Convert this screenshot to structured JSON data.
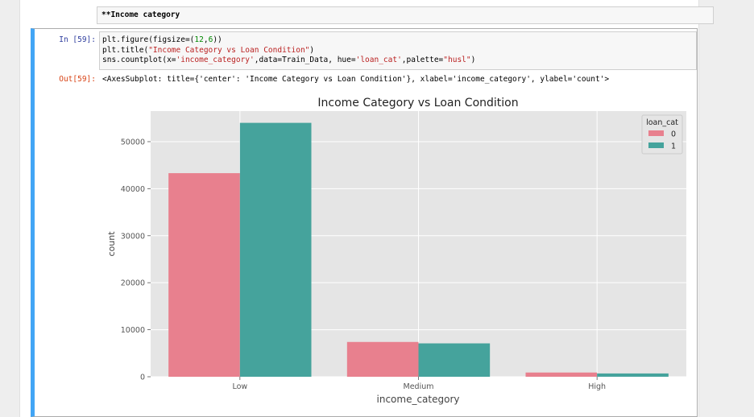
{
  "markdown_cell": {
    "text": "**Income category"
  },
  "code_cell": {
    "in_prompt": "In [59]:",
    "lines": [
      [
        "plt.figure(figsize=(",
        "12",
        ",",
        "6",
        "))"
      ],
      [
        "plt.title(",
        "\"Income Category vs Loan Condition\"",
        ")"
      ],
      [
        "sns.countplot(x=",
        "'income_category'",
        ",data=Train_Data, hue=",
        "'loan_cat'",
        ",palette=",
        "\"husl\"",
        ")"
      ]
    ],
    "out_prompt": "Out[59]:",
    "output_text": "<AxesSubplot: title={'center': 'Income Category vs Loan Condition'}, xlabel='income_category', ylabel='count'>"
  },
  "chart_data": {
    "type": "bar",
    "title": "Income Category vs Loan Condition",
    "xlabel": "income_category",
    "ylabel": "count",
    "categories": [
      "Low",
      "Medium",
      "High"
    ],
    "series": [
      {
        "name": "0",
        "values": [
          43300,
          7400,
          900
        ],
        "color": "#e8808e"
      },
      {
        "name": "1",
        "values": [
          54000,
          7100,
          700
        ],
        "color": "#45a39c"
      }
    ],
    "ylim": [
      0,
      56500
    ],
    "yticks": [
      0,
      10000,
      20000,
      30000,
      40000,
      50000
    ],
    "grid": true,
    "legend": {
      "title": "loan_cat",
      "placement": "top-right"
    },
    "background": "#e5e5e5"
  }
}
